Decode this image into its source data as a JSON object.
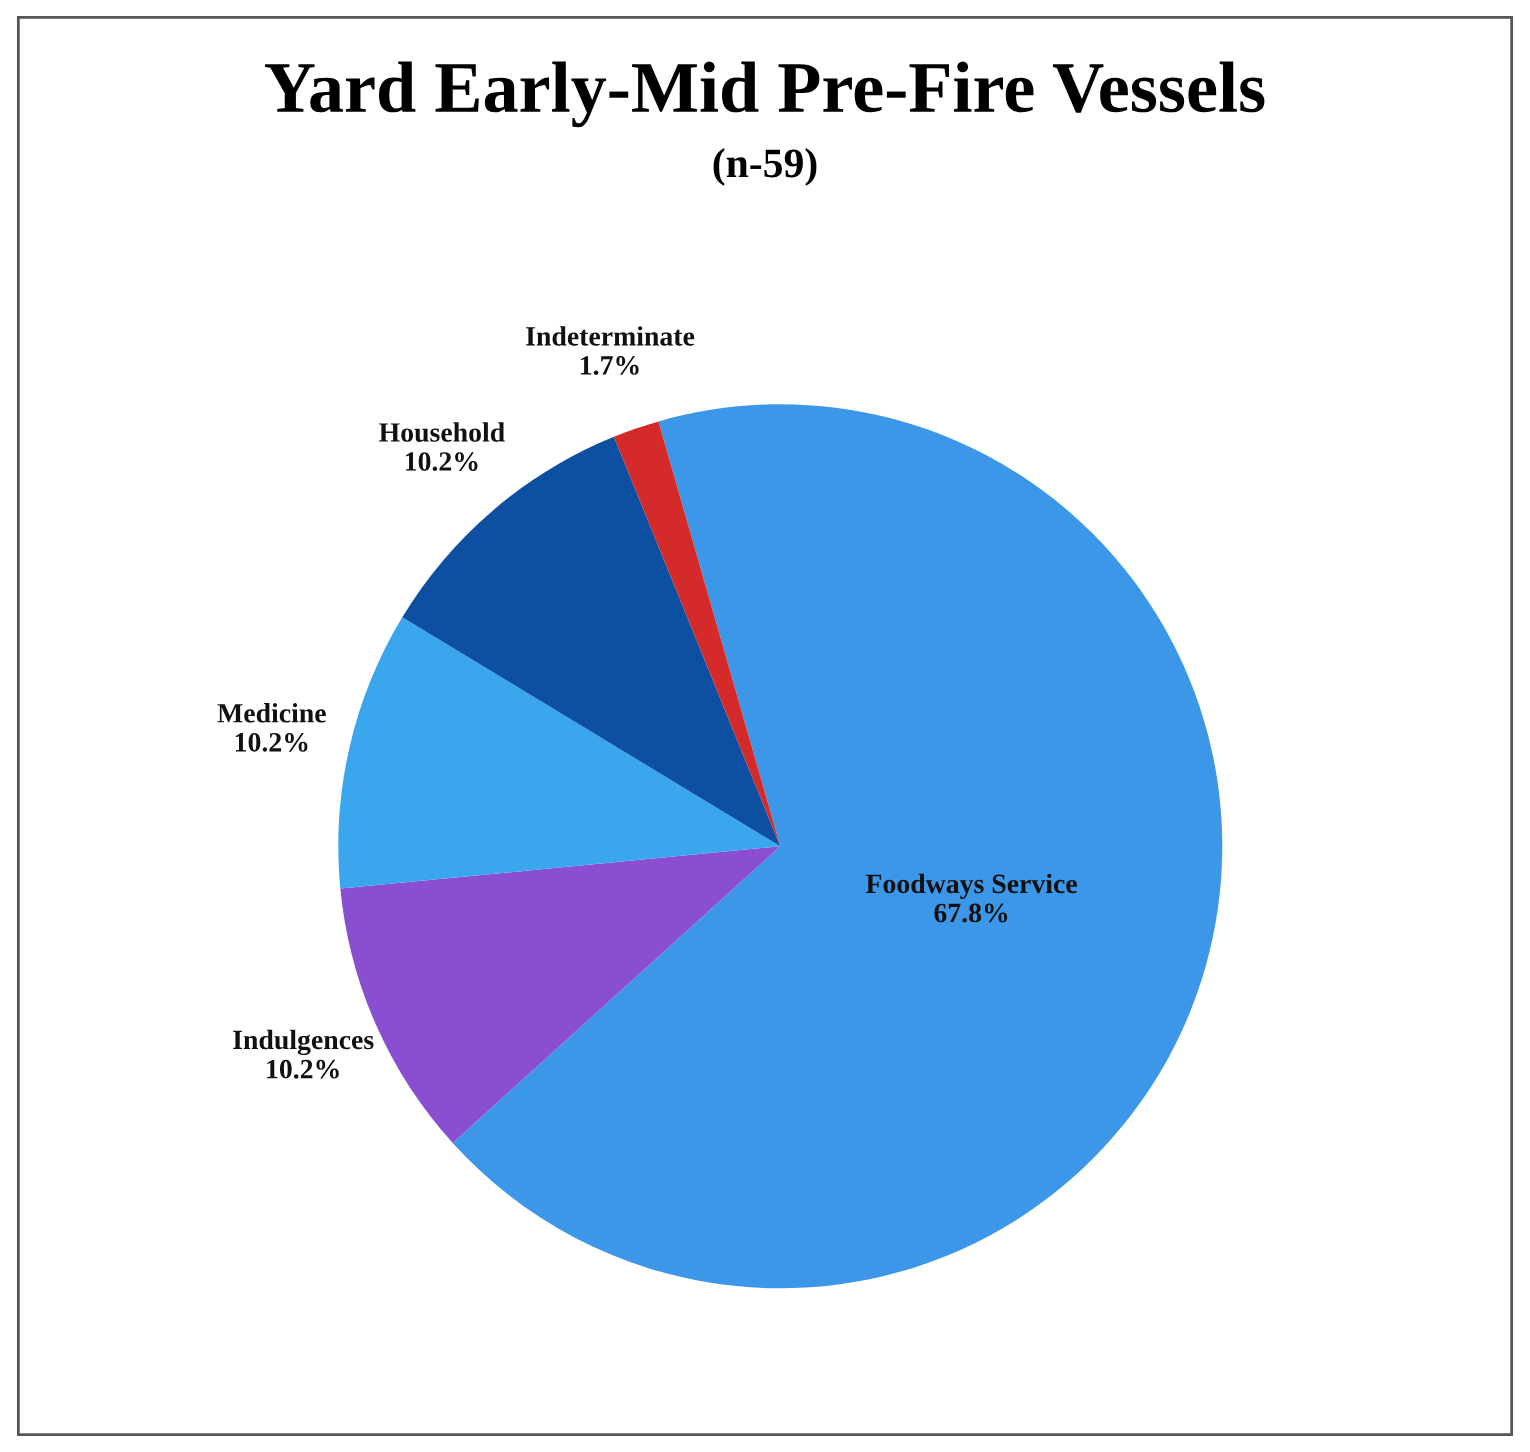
{
  "chart_data": {
    "type": "pie",
    "title": "Yard Early-Mid Pre-Fire Vessels",
    "subtitle": "(n-59)",
    "categories": [
      "Foodways Service",
      "Indulgences",
      "Medicine",
      "Household",
      "Indeterminate"
    ],
    "values": [
      67.8,
      10.2,
      10.2,
      10.2,
      1.7
    ],
    "value_labels": [
      "67.8%",
      "10.2%",
      "10.2%",
      "10.2%",
      "1.7%"
    ],
    "colors": [
      "#3d97e8",
      "#8a4fd0",
      "#3aa6ee",
      "#0d4fa0",
      "#d42a2a"
    ],
    "legend": false
  }
}
